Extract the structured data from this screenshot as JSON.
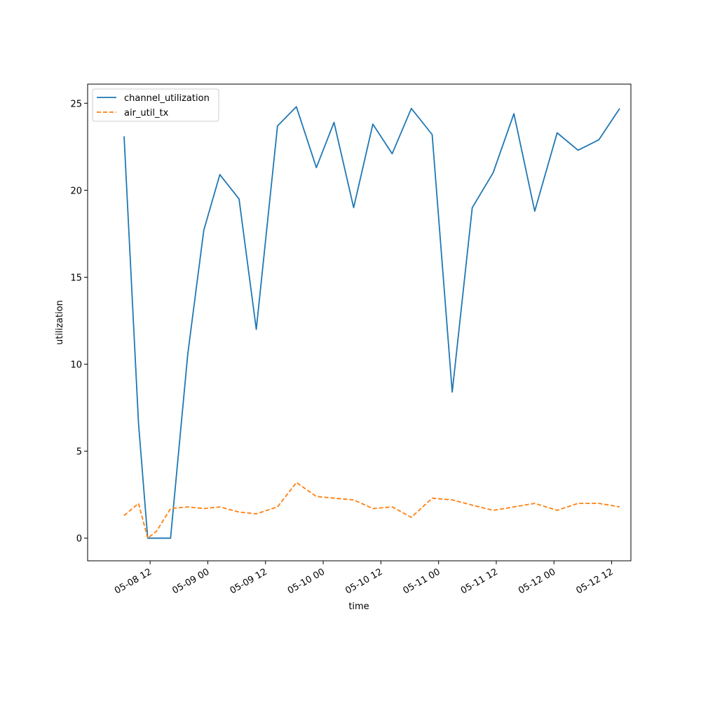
{
  "chart_data": {
    "type": "line",
    "title": "",
    "xlabel": "time",
    "ylabel": "utilization",
    "x_ticks": [
      "05-08 12",
      "05-09 00",
      "05-09 12",
      "05-10 00",
      "05-10 12",
      "05-11 00",
      "05-11 12",
      "05-12 00",
      "05-12 12"
    ],
    "x_tick_times": [
      "2024-05-08T12:00",
      "2024-05-09T00:00",
      "2024-05-09T12:00",
      "2024-05-10T00:00",
      "2024-05-10T12:00",
      "2024-05-11T00:00",
      "2024-05-11T12:00",
      "2024-05-12T00:00",
      "2024-05-12T12:00"
    ],
    "y_ticks": [
      0,
      5,
      10,
      15,
      20,
      25
    ],
    "xlim": [
      "2024-05-07T23:00",
      "2024-05-12T16:00"
    ],
    "ylim": [
      -1.3,
      26.1
    ],
    "grid": false,
    "legend_position": "upper left",
    "x": [
      "2024-05-08T06:35",
      "2024-05-08T09:35",
      "2024-05-08T11:30",
      "2024-05-08T13:20",
      "2024-05-08T16:15",
      "2024-05-08T19:50",
      "2024-05-08T23:10",
      "2024-05-09T02:30",
      "2024-05-09T06:30",
      "2024-05-09T10:05",
      "2024-05-09T14:30",
      "2024-05-09T18:25",
      "2024-05-09T22:35",
      "2024-05-10T02:15",
      "2024-05-10T06:20",
      "2024-05-10T10:20",
      "2024-05-10T14:20",
      "2024-05-10T18:20",
      "2024-05-10T22:40",
      "2024-05-11T02:50",
      "2024-05-11T07:00",
      "2024-05-11T11:20",
      "2024-05-11T15:40",
      "2024-05-11T20:00",
      "2024-05-12T00:40",
      "2024-05-12T05:00",
      "2024-05-12T09:20",
      "2024-05-12T13:40"
    ],
    "series": [
      {
        "name": "channel_utilization",
        "color": "#1f77b4",
        "dash": "solid",
        "x": [
          "2024-05-08T06:35",
          "2024-05-08T09:35",
          "2024-05-08T11:30",
          "2024-05-08T13:20",
          "2024-05-08T16:15",
          "2024-05-08T19:50",
          "2024-05-08T23:10",
          "2024-05-09T02:30",
          "2024-05-09T06:30",
          "2024-05-09T10:05",
          "2024-05-09T14:30",
          "2024-05-09T18:25",
          "2024-05-09T22:35",
          "2024-05-10T02:15",
          "2024-05-10T06:20",
          "2024-05-10T10:20",
          "2024-05-10T14:20",
          "2024-05-10T18:20",
          "2024-05-10T22:40",
          "2024-05-11T02:50",
          "2024-05-11T07:00",
          "2024-05-11T11:20",
          "2024-05-11T15:40",
          "2024-05-11T20:00",
          "2024-05-12T00:40",
          "2024-05-12T05:00",
          "2024-05-12T09:20",
          "2024-05-12T13:40"
        ],
        "values": [
          23.1,
          6.6,
          0.0,
          0.0,
          0.0,
          10.6,
          17.7,
          20.9,
          19.5,
          12.0,
          23.7,
          24.8,
          21.3,
          23.9,
          19.0,
          23.8,
          22.1,
          24.7,
          23.2,
          8.4,
          19.0,
          21.0,
          24.4,
          18.8,
          23.3,
          22.3,
          22.9,
          24.7
        ]
      },
      {
        "name": "air_util_tx",
        "color": "#ff7f0e",
        "dash": "dashed",
        "values": [
          1.3,
          2.0,
          0.0,
          0.4,
          1.7,
          1.8,
          1.7,
          1.8,
          1.5,
          1.4,
          1.8,
          3.2,
          2.4,
          2.3,
          2.2,
          1.7,
          1.8,
          1.2,
          2.3,
          2.2,
          1.9,
          1.6,
          1.8,
          2.0,
          1.6,
          2.0,
          2.0,
          1.8
        ]
      }
    ]
  }
}
